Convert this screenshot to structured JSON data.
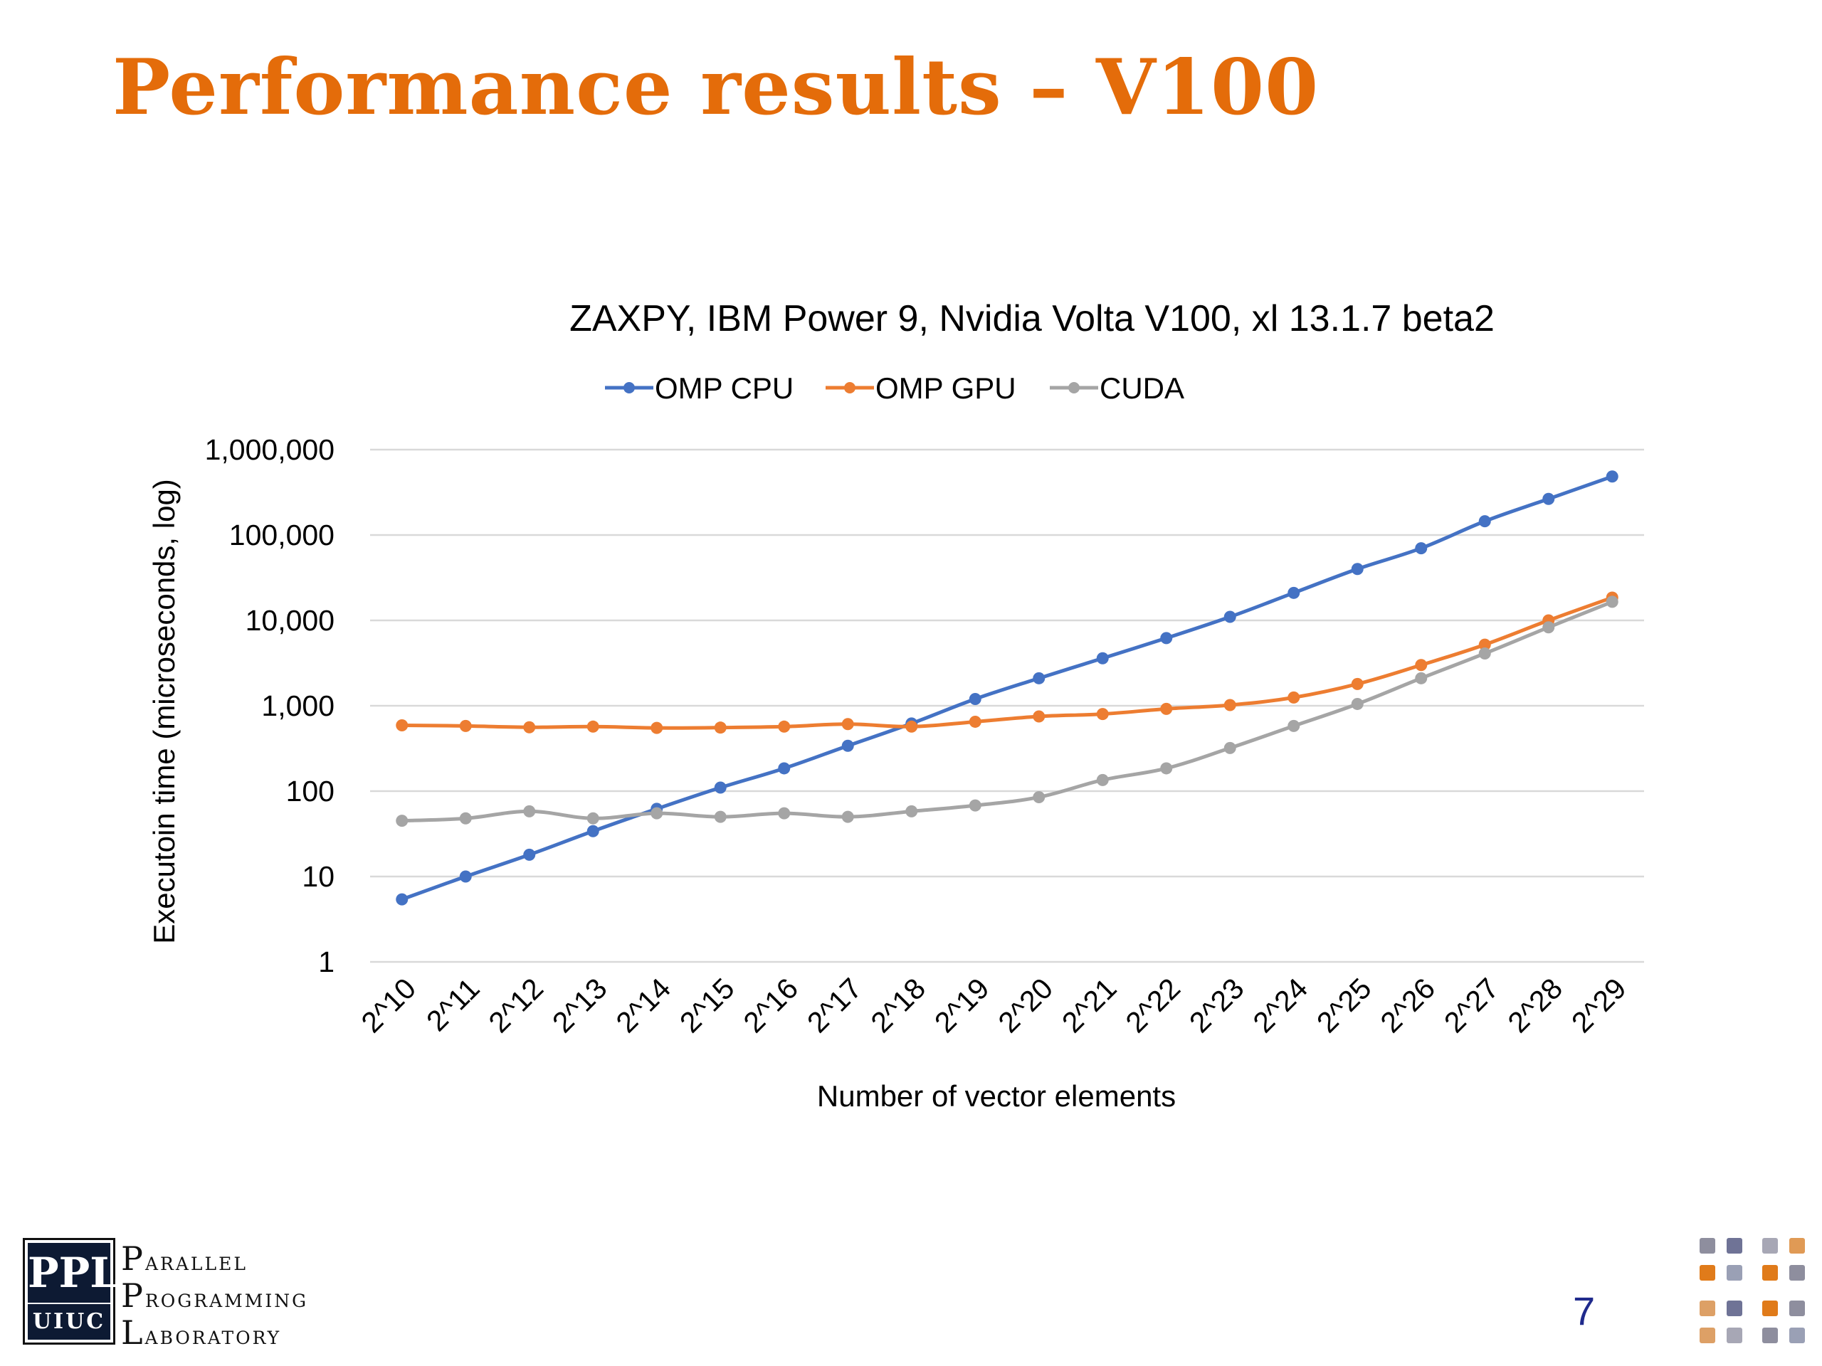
{
  "slide": {
    "title": "Performance results – V100",
    "page_number": "7"
  },
  "logo": {
    "ppl_top": "PPL",
    "ppl_bottom": "UIUC",
    "lines": [
      "Parallel",
      "Programming",
      "Laboratory"
    ]
  },
  "chart_data": {
    "type": "line",
    "title": "ZAXPY, IBM Power 9, Nvidia Volta V100, xl 13.1.7 beta2",
    "xlabel": "Number of vector elements",
    "ylabel": "Executoin time (microseconds, log)",
    "yscale": "log",
    "ylim": [
      1,
      1000000
    ],
    "yticks": [
      "1,000,000",
      "100,000",
      "10,000",
      "1,000",
      "100",
      "10",
      "1"
    ],
    "grid": true,
    "legend_position": "top",
    "categories": [
      "2^10",
      "2^11",
      "2^12",
      "2^13",
      "2^14",
      "2^15",
      "2^16",
      "2^17",
      "2^18",
      "2^19",
      "2^20",
      "2^21",
      "2^22",
      "2^23",
      "2^24",
      "2^25",
      "2^26",
      "2^27",
      "2^28",
      "2^29"
    ],
    "series": [
      {
        "name": "OMP CPU",
        "color": "#4472C4",
        "values": [
          5.4,
          10,
          18,
          34,
          62,
          110,
          185,
          340,
          620,
          1200,
          2100,
          3600,
          6200,
          11000,
          21000,
          40000,
          70000,
          145000,
          265000,
          485000
        ]
      },
      {
        "name": "OMP GPU",
        "color": "#ED7D31",
        "values": [
          590,
          580,
          560,
          570,
          550,
          555,
          570,
          610,
          570,
          650,
          750,
          800,
          920,
          1020,
          1250,
          1800,
          3000,
          5200,
          10000,
          18500
        ]
      },
      {
        "name": "CUDA",
        "color": "#A5A5A5",
        "values": [
          45,
          48,
          58,
          48,
          55,
          50,
          55,
          50,
          58,
          68,
          85,
          135,
          185,
          320,
          580,
          1050,
          2100,
          4100,
          8300,
          16500
        ]
      }
    ]
  }
}
